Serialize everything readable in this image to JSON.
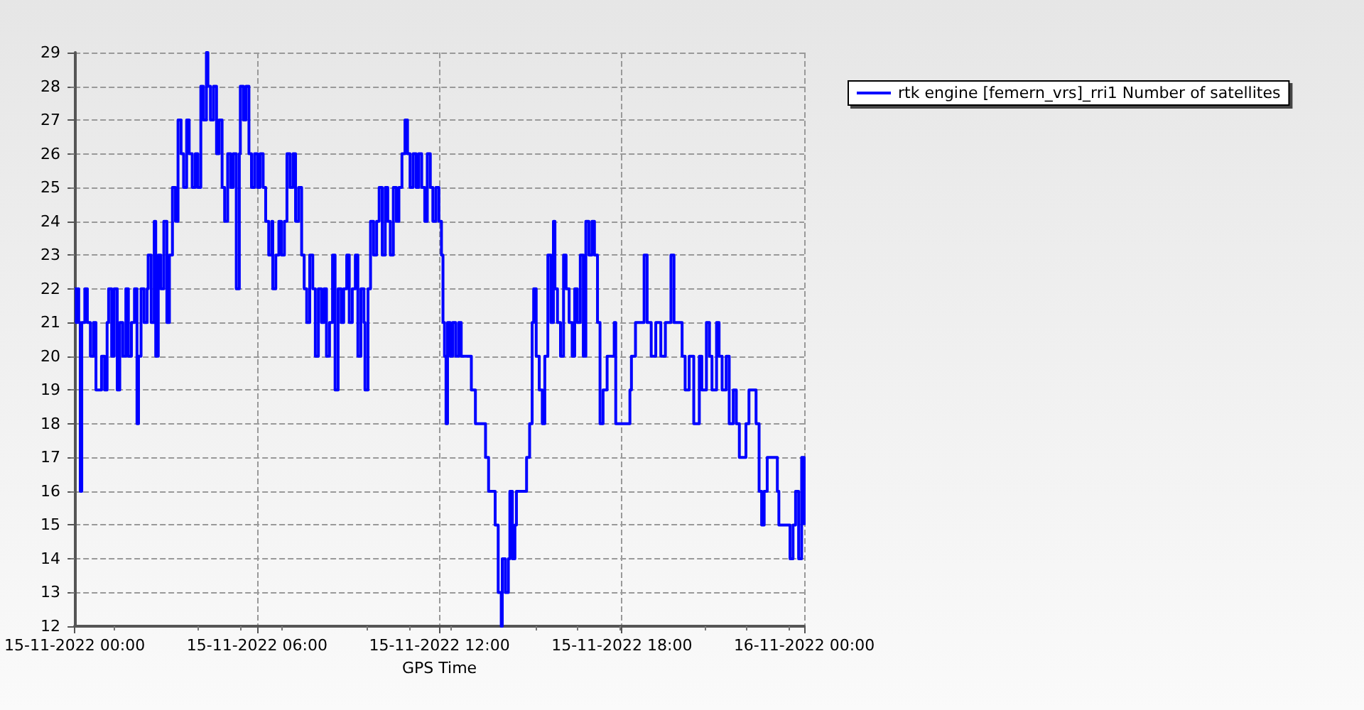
{
  "chart_data": {
    "type": "step",
    "xlabel": "GPS Time",
    "legend": "top right",
    "grid": true,
    "marker": "none",
    "line_style": "solid",
    "xlim": [
      "2022-11-15T00:00",
      "2022-11-16T00:00"
    ],
    "xticks": [
      {
        "value": "2022-11-15T00:00",
        "label": "15-11-2022 00:00"
      },
      {
        "value": "2022-11-15T06:00",
        "label": "15-11-2022 06:00"
      },
      {
        "value": "2022-11-15T12:00",
        "label": "15-11-2022 12:00"
      },
      {
        "value": "2022-11-15T18:00",
        "label": "15-11-2022 18:00"
      },
      {
        "value": "2022-11-16T00:00",
        "label": "16-11-2022 00:00"
      }
    ],
    "ylim": [
      12,
      29
    ],
    "yticks": [
      12,
      13,
      14,
      15,
      16,
      17,
      18,
      19,
      20,
      21,
      22,
      23,
      24,
      25,
      26,
      27,
      28,
      29
    ],
    "series": [
      {
        "name": "rtk engine [femern_vrs]_rri1 Number of satellites",
        "color": "#0000ff",
        "x": [
          "2022-11-15T00:00",
          "2022-11-15T00:03",
          "2022-11-15T00:05",
          "2022-11-15T00:08",
          "2022-11-15T00:11",
          "2022-11-15T00:14",
          "2022-11-15T00:20",
          "2022-11-15T00:25",
          "2022-11-15T00:31",
          "2022-11-15T00:37",
          "2022-11-15T00:42",
          "2022-11-15T00:47",
          "2022-11-15T00:53",
          "2022-11-15T00:59",
          "2022-11-15T01:04",
          "2022-11-15T01:07",
          "2022-11-15T01:13",
          "2022-11-15T01:18",
          "2022-11-15T01:24",
          "2022-11-15T01:29",
          "2022-11-15T01:35",
          "2022-11-15T01:41",
          "2022-11-15T01:46",
          "2022-11-15T01:52",
          "2022-11-15T01:58",
          "2022-11-15T02:03",
          "2022-11-15T02:06",
          "2022-11-15T02:11",
          "2022-11-15T02:17",
          "2022-11-15T02:23",
          "2022-11-15T02:25",
          "2022-11-15T02:31",
          "2022-11-15T02:37",
          "2022-11-15T02:40",
          "2022-11-15T02:45",
          "2022-11-15T02:50",
          "2022-11-15T02:56",
          "2022-11-15T03:02",
          "2022-11-15T03:07",
          "2022-11-15T03:13",
          "2022-11-15T03:19",
          "2022-11-15T03:24",
          "2022-11-15T03:30",
          "2022-11-15T03:35",
          "2022-11-15T03:41",
          "2022-11-15T03:46",
          "2022-11-15T03:52",
          "2022-11-15T03:58",
          "2022-11-15T04:03",
          "2022-11-15T04:09",
          "2022-11-15T04:14",
          "2022-11-15T04:20",
          "2022-11-15T04:23",
          "2022-11-15T04:28",
          "2022-11-15T04:34",
          "2022-11-15T04:40",
          "2022-11-15T04:45",
          "2022-11-15T04:51",
          "2022-11-15T04:56",
          "2022-11-15T05:02",
          "2022-11-15T05:08",
          "2022-11-15T05:13",
          "2022-11-15T05:19",
          "2022-11-15T05:25",
          "2022-11-15T05:27",
          "2022-11-15T05:33",
          "2022-11-15T05:38",
          "2022-11-15T05:44",
          "2022-11-15T05:49",
          "2022-11-15T05:55",
          "2022-11-15T06:01",
          "2022-11-15T06:06",
          "2022-11-15T06:12",
          "2022-11-15T06:17",
          "2022-11-15T06:23",
          "2022-11-15T06:29",
          "2022-11-15T06:31",
          "2022-11-15T06:37",
          "2022-11-15T06:43",
          "2022-11-15T06:48",
          "2022-11-15T06:54",
          "2022-11-15T06:59",
          "2022-11-15T07:05",
          "2022-11-15T07:11",
          "2022-11-15T07:16",
          "2022-11-15T07:22",
          "2022-11-15T07:28",
          "2022-11-15T07:33",
          "2022-11-15T07:38",
          "2022-11-15T07:44",
          "2022-11-15T07:50",
          "2022-11-15T07:55",
          "2022-11-15T08:01",
          "2022-11-15T08:07",
          "2022-11-15T08:12",
          "2022-11-15T08:17",
          "2022-11-15T08:23",
          "2022-11-15T08:29",
          "2022-11-15T08:34",
          "2022-11-15T08:40",
          "2022-11-15T08:46",
          "2022-11-15T08:51",
          "2022-11-15T08:57",
          "2022-11-15T09:02",
          "2022-11-15T09:08",
          "2022-11-15T09:14",
          "2022-11-15T09:19",
          "2022-11-15T09:25",
          "2022-11-15T09:31",
          "2022-11-15T09:33",
          "2022-11-15T09:39",
          "2022-11-15T09:44",
          "2022-11-15T09:50",
          "2022-11-15T09:56",
          "2022-11-15T10:01",
          "2022-11-15T10:07",
          "2022-11-15T10:13",
          "2022-11-15T10:18",
          "2022-11-15T10:23",
          "2022-11-15T10:29",
          "2022-11-15T10:35",
          "2022-11-15T10:40",
          "2022-11-15T10:46",
          "2022-11-15T10:52",
          "2022-11-15T10:57",
          "2022-11-15T11:02",
          "2022-11-15T11:08",
          "2022-11-15T11:14",
          "2022-11-15T11:19",
          "2022-11-15T11:25",
          "2022-11-15T11:31",
          "2022-11-15T11:36",
          "2022-11-15T11:42",
          "2022-11-15T11:47",
          "2022-11-15T11:53",
          "2022-11-15T11:59",
          "2022-11-15T12:04",
          "2022-11-15T12:07",
          "2022-11-15T12:10",
          "2022-11-15T12:13",
          "2022-11-15T12:16",
          "2022-11-15T12:21",
          "2022-11-15T12:26",
          "2022-11-15T12:32",
          "2022-11-15T12:38",
          "2022-11-15T12:43",
          "2022-11-15T12:52",
          "2022-11-15T13:03",
          "2022-11-15T13:11",
          "2022-11-15T13:31",
          "2022-11-15T13:37",
          "2022-11-15T13:50",
          "2022-11-15T13:56",
          "2022-11-15T14:02",
          "2022-11-15T14:04",
          "2022-11-15T14:10",
          "2022-11-15T14:16",
          "2022-11-15T14:19",
          "2022-11-15T14:24",
          "2022-11-15T14:29",
          "2022-11-15T14:32",
          "2022-11-15T14:52",
          "2022-11-15T14:58",
          "2022-11-15T15:03",
          "2022-11-15T15:06",
          "2022-11-15T15:11",
          "2022-11-15T15:17",
          "2022-11-15T15:23",
          "2022-11-15T15:28",
          "2022-11-15T15:34",
          "2022-11-15T15:40",
          "2022-11-15T15:45",
          "2022-11-15T15:48",
          "2022-11-15T15:53",
          "2022-11-15T15:59",
          "2022-11-15T16:05",
          "2022-11-15T16:10",
          "2022-11-15T16:16",
          "2022-11-15T16:22",
          "2022-11-15T16:27",
          "2022-11-15T16:32",
          "2022-11-15T16:38",
          "2022-11-15T16:44",
          "2022-11-15T16:49",
          "2022-11-15T16:55",
          "2022-11-15T17:01",
          "2022-11-15T17:06",
          "2022-11-15T17:12",
          "2022-11-15T17:17",
          "2022-11-15T17:23",
          "2022-11-15T17:31",
          "2022-11-15T17:45",
          "2022-11-15T17:48",
          "2022-11-15T18:16",
          "2022-11-15T18:19",
          "2022-11-15T18:27",
          "2022-11-15T18:44",
          "2022-11-15T18:50",
          "2022-11-15T18:58",
          "2022-11-15T19:07",
          "2022-11-15T19:17",
          "2022-11-15T19:26",
          "2022-11-15T19:37",
          "2022-11-15T19:43",
          "2022-11-15T19:59",
          "2022-11-15T20:05",
          "2022-11-15T20:13",
          "2022-11-15T20:22",
          "2022-11-15T20:33",
          "2022-11-15T20:38",
          "2022-11-15T20:47",
          "2022-11-15T20:53",
          "2022-11-15T20:58",
          "2022-11-15T21:07",
          "2022-11-15T21:12",
          "2022-11-15T21:18",
          "2022-11-15T21:26",
          "2022-11-15T21:32",
          "2022-11-15T21:40",
          "2022-11-15T21:46",
          "2022-11-15T21:52",
          "2022-11-15T22:05",
          "2022-11-15T22:11",
          "2022-11-15T22:25",
          "2022-11-15T22:31",
          "2022-11-15T22:36",
          "2022-11-15T22:41",
          "2022-11-15T22:47",
          "2022-11-15T23:01",
          "2022-11-15T23:07",
          "2022-11-15T23:10",
          "2022-11-15T23:32",
          "2022-11-15T23:38",
          "2022-11-15T23:43",
          "2022-11-15T23:49",
          "2022-11-15T23:55",
          "2022-11-16T00:00"
        ],
        "values": [
          22,
          21,
          22,
          21,
          16,
          21,
          22,
          21,
          20,
          21,
          19,
          19,
          20,
          19,
          21,
          22,
          20,
          22,
          19,
          21,
          20,
          22,
          20,
          21,
          22,
          18,
          20,
          22,
          21,
          22,
          23,
          21,
          24,
          20,
          23,
          22,
          24,
          21,
          23,
          25,
          24,
          27,
          26,
          25,
          27,
          26,
          25,
          26,
          25,
          28,
          27,
          29,
          28,
          27,
          28,
          26,
          27,
          25,
          24,
          26,
          25,
          26,
          22,
          26,
          28,
          27,
          28,
          26,
          25,
          26,
          25,
          26,
          25,
          24,
          23,
          24,
          22,
          23,
          24,
          23,
          24,
          26,
          25,
          26,
          24,
          25,
          23,
          22,
          21,
          23,
          22,
          20,
          22,
          21,
          22,
          20,
          21,
          23,
          19,
          22,
          21,
          22,
          23,
          21,
          22,
          23,
          20,
          22,
          21,
          19,
          22,
          24,
          23,
          24,
          25,
          23,
          25,
          24,
          23,
          25,
          24,
          25,
          26,
          27,
          26,
          25,
          26,
          25,
          26,
          25,
          24,
          26,
          25,
          24,
          25,
          24,
          23,
          21,
          20,
          18,
          21,
          20,
          21,
          20,
          21,
          20,
          20,
          19,
          18,
          17,
          16,
          15,
          13,
          12,
          14,
          13,
          14,
          16,
          14,
          15,
          16,
          17,
          18,
          21,
          22,
          20,
          19,
          18,
          20,
          23,
          21,
          24,
          22,
          21,
          20,
          23,
          22,
          21,
          20,
          22,
          21,
          23,
          20,
          24,
          23,
          24,
          23,
          21,
          18,
          19,
          20,
          21,
          18,
          19,
          20,
          21,
          23,
          21,
          20,
          21,
          20,
          21,
          23,
          21,
          20,
          19,
          20,
          18,
          20,
          19,
          21,
          20,
          19,
          21,
          20,
          19,
          20,
          18,
          19,
          18,
          17,
          18,
          19,
          18,
          16,
          15,
          16,
          17,
          17,
          16,
          15,
          14,
          15,
          16,
          14,
          17,
          15
        ]
      }
    ]
  }
}
